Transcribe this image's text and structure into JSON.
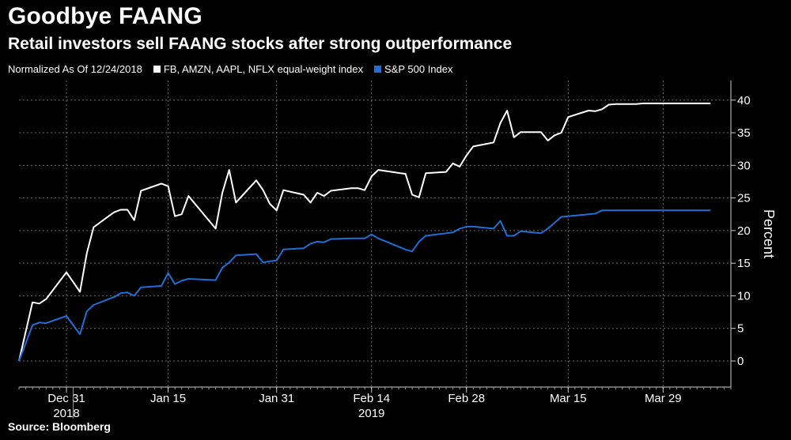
{
  "title": "Goodbye FAANG",
  "subtitle": "Retail investors sell FAANG stocks after strong outperformance",
  "legend": {
    "note": "Normalized As Of 12/24/2018",
    "series1": "FB, AMZN, AAPL, NFLX equal-weight index",
    "series2": "S&P 500 Index"
  },
  "source": "Source: Bloomberg",
  "chart_data": {
    "type": "line",
    "xlabel": "",
    "ylabel": "Percent",
    "ylim": [
      -4,
      43
    ],
    "y_ticks": [
      0,
      5,
      10,
      15,
      20,
      25,
      30,
      35,
      40
    ],
    "grid": "horizontal dotted",
    "x_ticks": [
      {
        "label": "Dec 31",
        "date": "2018-12-31"
      },
      {
        "label": "Jan 15",
        "date": "2019-01-15"
      },
      {
        "label": "Jan 31",
        "date": "2019-01-31"
      },
      {
        "label": "Feb 14",
        "date": "2019-02-14"
      },
      {
        "label": "Feb 28",
        "date": "2019-02-28"
      },
      {
        "label": "Mar 15",
        "date": "2019-03-15"
      },
      {
        "label": "Mar 29",
        "date": "2019-03-29"
      }
    ],
    "year_labels": [
      {
        "label": "2018",
        "date": "2018-12-31"
      },
      {
        "label": "2019",
        "date": "2019-02-14"
      }
    ],
    "x": [
      "2018-12-24",
      "2018-12-26",
      "2018-12-27",
      "2018-12-28",
      "2018-12-31",
      "2019-01-02",
      "2019-01-03",
      "2019-01-04",
      "2019-01-07",
      "2019-01-08",
      "2019-01-09",
      "2019-01-10",
      "2019-01-11",
      "2019-01-14",
      "2019-01-15",
      "2019-01-16",
      "2019-01-17",
      "2019-01-18",
      "2019-01-22",
      "2019-01-23",
      "2019-01-24",
      "2019-01-25",
      "2019-01-28",
      "2019-01-29",
      "2019-01-30",
      "2019-01-31",
      "2019-02-01",
      "2019-02-04",
      "2019-02-05",
      "2019-02-06",
      "2019-02-07",
      "2019-02-08",
      "2019-02-11",
      "2019-02-12",
      "2019-02-13",
      "2019-02-14",
      "2019-02-15",
      "2019-02-19",
      "2019-02-20",
      "2019-02-21",
      "2019-02-22",
      "2019-02-25",
      "2019-02-26",
      "2019-02-27",
      "2019-02-28",
      "2019-03-01",
      "2019-03-04",
      "2019-03-05",
      "2019-03-06",
      "2019-03-07",
      "2019-03-08",
      "2019-03-11",
      "2019-03-12",
      "2019-03-13",
      "2019-03-14",
      "2019-03-15",
      "2019-03-18",
      "2019-03-19",
      "2019-03-20",
      "2019-03-21",
      "2019-03-22",
      "2019-03-25",
      "2019-03-26",
      "2019-03-27",
      "2019-03-28",
      "2019-03-29",
      "2019-04-01",
      "2019-04-02",
      "2019-04-03",
      "2019-04-04",
      "2019-04-05"
    ],
    "series": [
      {
        "name": "FB, AMZN, AAPL, NFLX equal-weight index",
        "color": "#ffffff",
        "values": [
          0,
          9,
          8.8,
          9.5,
          13.6,
          10.6,
          16.5,
          20.5,
          22.8,
          23.2,
          23.2,
          21.6,
          26.1,
          27.2,
          26.8,
          22.2,
          22.5,
          25.3,
          20.3,
          25.8,
          29.3,
          24.3,
          27.7,
          26.2,
          24.1,
          23.1,
          26.2,
          25.5,
          24.3,
          25.8,
          25.3,
          26.1,
          26.5,
          26.5,
          26.2,
          28.3,
          29.3,
          28.7,
          25.5,
          25.1,
          28.8,
          29.0,
          30.3,
          29.8,
          31.5,
          32.9,
          33.5,
          36.5,
          38.4,
          34.3,
          35.1,
          35.1,
          33.8,
          34.6,
          35.0,
          37.4,
          38.4,
          38.3,
          38.6,
          39.3,
          39.4,
          39.4,
          39.5,
          39.5,
          39.5,
          39.5,
          39.5,
          39.5,
          39.5,
          39.5,
          39.5
        ]
      },
      {
        "name": "S&P 500 Index",
        "color": "#1f6fd6",
        "values": [
          0,
          5.5,
          5.9,
          5.8,
          6.9,
          4.1,
          7.6,
          8.6,
          9.8,
          10.4,
          10.5,
          10.0,
          11.3,
          11.5,
          13.5,
          11.8,
          12.3,
          12.6,
          12.4,
          14.3,
          15.1,
          16.2,
          16.4,
          15.1,
          15.3,
          15.4,
          17.1,
          17.3,
          18.0,
          18.3,
          18.2,
          18.7,
          18.8,
          18.8,
          18.8,
          19.4,
          18.8,
          17.1,
          16.8,
          18.3,
          19.2,
          19.6,
          19.7,
          20.3,
          20.6,
          20.6,
          20.3,
          21.5,
          19.2,
          19.2,
          19.9,
          19.6,
          20.3,
          21.2,
          22.1,
          22.2,
          22.5,
          22.6,
          23.1,
          23.1,
          23.1,
          23.1,
          23.1,
          23.1,
          23.1,
          23.1,
          23.1,
          23.1,
          23.1,
          23.1,
          23.1
        ]
      }
    ]
  }
}
